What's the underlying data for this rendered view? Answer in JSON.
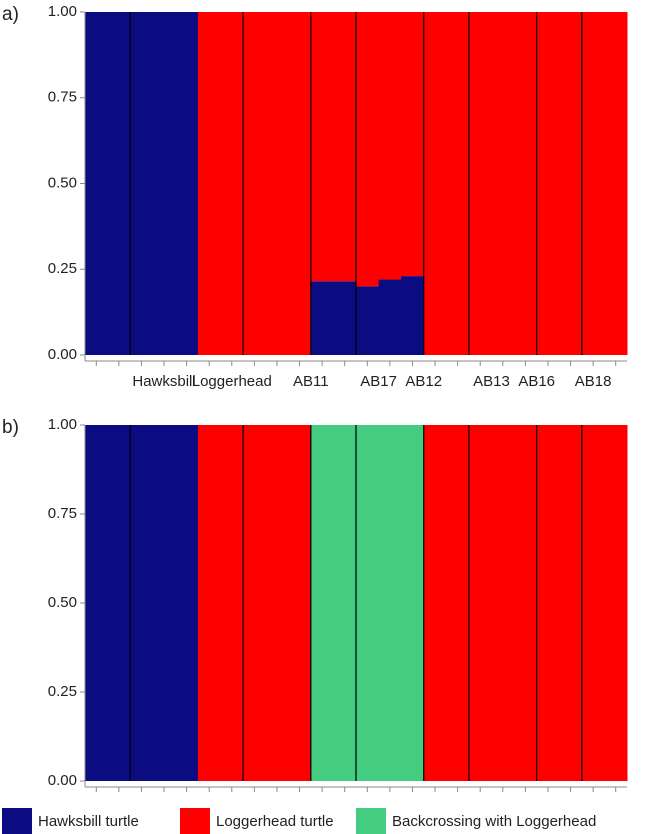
{
  "chart_data": [
    {
      "type": "stacked_bar",
      "panel_label": "a)",
      "categories": [
        "",
        null,
        "Hawksbill",
        null,
        null,
        null,
        null,
        "Loggerhead",
        null,
        null,
        "AB11",
        null,
        "AB17",
        null,
        null,
        "AB12",
        null,
        "AB13",
        null,
        null,
        "AB16",
        null,
        "AB18",
        null
      ],
      "series": [
        {
          "color": "#0c0c82",
          "values": [
            1,
            1,
            1,
            1,
            1,
            0,
            0,
            0,
            0,
            0,
            0.215,
            0.215,
            0.2,
            0.22,
            0.23,
            0,
            0,
            0,
            0,
            0,
            0,
            0,
            0,
            0
          ]
        },
        {
          "color": "#fe0000",
          "values": [
            0,
            0,
            0,
            0,
            0,
            1,
            1,
            1,
            1,
            1,
            0.785,
            0.785,
            0.8,
            0.78,
            0.77,
            1,
            1,
            1,
            1,
            1,
            1,
            1,
            1,
            1
          ]
        }
      ],
      "ylim": [
        0,
        1
      ],
      "yticks": [
        {
          "value": 0,
          "label": "0.00"
        },
        {
          "value": 0.25,
          "label": "0.25"
        },
        {
          "value": 0.5,
          "label": "0.50"
        },
        {
          "value": 0.75,
          "label": "0.75"
        },
        {
          "value": 1,
          "label": "1.00"
        }
      ]
    },
    {
      "type": "stacked_bar",
      "panel_label": "b)",
      "series": [
        {
          "name": "Hawksbill turtle",
          "color": "#0c0c82",
          "values": [
            1,
            1,
            1,
            1,
            1,
            0,
            0,
            0,
            0,
            0,
            0,
            0,
            0,
            0,
            0,
            0,
            0,
            0,
            0,
            0,
            0,
            0,
            0,
            0
          ]
        },
        {
          "name": "Loggerhead turtle",
          "color": "#fe0000",
          "values": [
            0,
            0,
            0,
            0,
            0,
            1,
            1,
            1,
            1,
            1,
            0,
            0,
            0,
            0,
            0,
            1,
            1,
            1,
            1,
            1,
            1,
            1,
            1,
            1
          ]
        },
        {
          "name": "Backcrossing with Loggerhead",
          "color": "#44cc80",
          "values": [
            0,
            0,
            0,
            0,
            0,
            0,
            0,
            0,
            0,
            0,
            1,
            1,
            1,
            1,
            1,
            0,
            0,
            0,
            0,
            0,
            0,
            0,
            0,
            0
          ]
        }
      ],
      "ylim": [
        0,
        1
      ],
      "yticks": [
        {
          "value": 0,
          "label": "0.00"
        },
        {
          "value": 0.25,
          "label": "0.25"
        },
        {
          "value": 0.5,
          "label": "0.50"
        },
        {
          "value": 0.75,
          "label": "0.75"
        },
        {
          "value": 1,
          "label": "1.00"
        }
      ]
    }
  ]
}
